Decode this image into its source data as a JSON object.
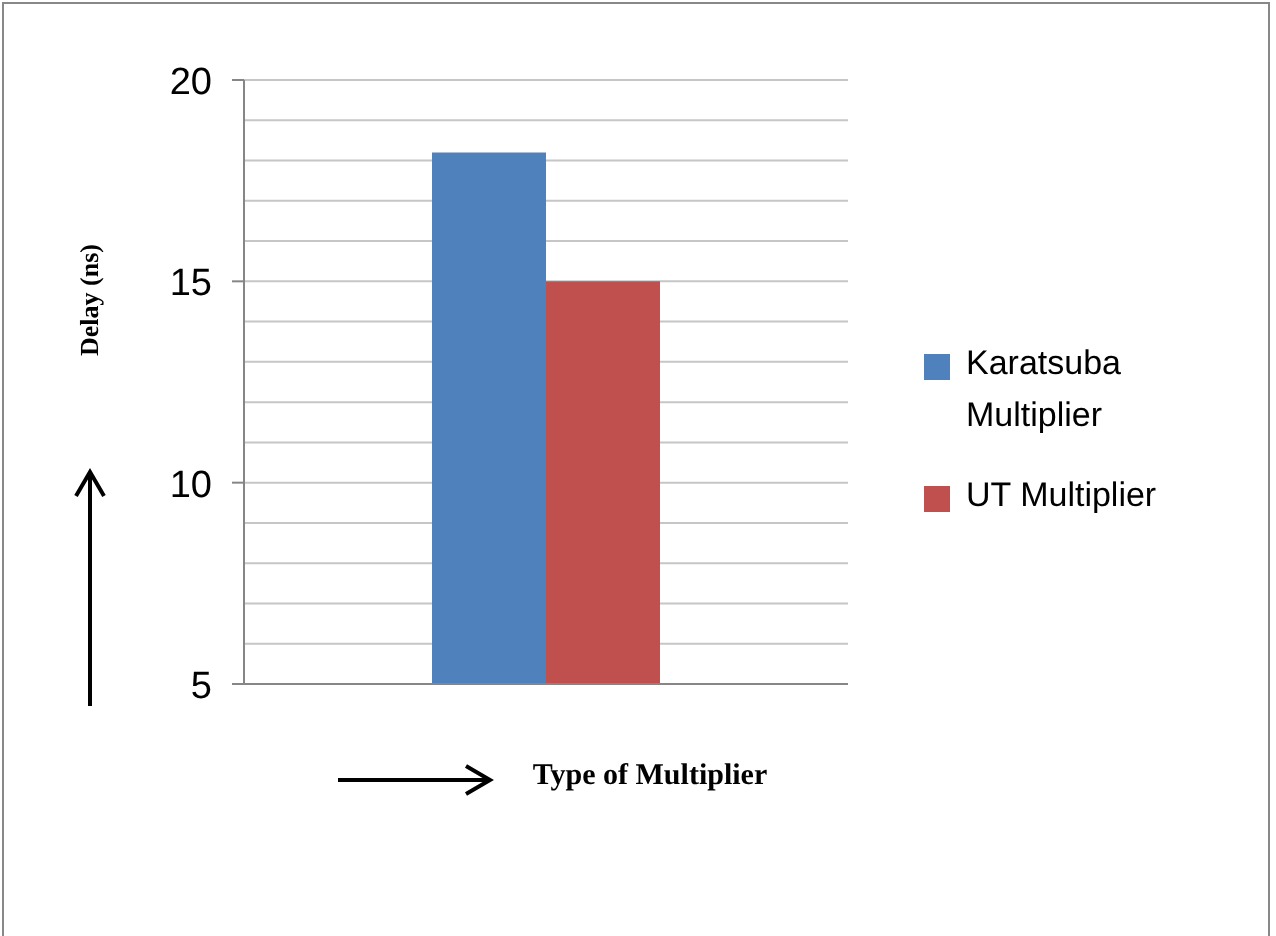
{
  "chart_data": {
    "type": "bar",
    "xlabel": "Type of Multiplier",
    "ylabel": "Delay (ns)",
    "categories": [
      null
    ],
    "series": [
      {
        "name": "Karatsuba Multiplier",
        "color": "#4f81bd",
        "values": [
          18.2
        ]
      },
      {
        "name": "UT Multiplier",
        "color": "#c0504d",
        "values": [
          15
        ]
      }
    ],
    "ylim": [
      5,
      20
    ],
    "yticks": [
      5,
      {
        "value": 6,
        "label": null
      },
      {
        "value": 7,
        "label": null
      },
      {
        "value": 8,
        "label": null
      },
      {
        "value": 9,
        "label": null
      },
      10,
      {
        "value": 11,
        "label": null
      },
      {
        "value": 12,
        "label": null
      },
      {
        "value": 13,
        "label": null
      },
      {
        "value": 14,
        "label": null
      },
      15,
      {
        "value": 16,
        "label": null
      },
      {
        "value": 17,
        "label": null
      },
      {
        "value": 18,
        "label": null
      },
      {
        "value": 19,
        "label": null
      },
      20
    ],
    "grid": "y",
    "legend": "right"
  }
}
